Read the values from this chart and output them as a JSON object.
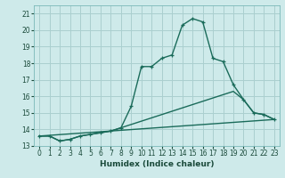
{
  "xlabel": "Humidex (Indice chaleur)",
  "background_color": "#ceeaea",
  "grid_color": "#aacfcf",
  "line_color": "#1a6b5a",
  "xlim": [
    -0.5,
    23.5
  ],
  "ylim": [
    13,
    21.5
  ],
  "yticks": [
    13,
    14,
    15,
    16,
    17,
    18,
    19,
    20,
    21
  ],
  "xticks": [
    0,
    1,
    2,
    3,
    4,
    5,
    6,
    7,
    8,
    9,
    10,
    11,
    12,
    13,
    14,
    15,
    16,
    17,
    18,
    19,
    20,
    21,
    22,
    23
  ],
  "series": [
    {
      "x": [
        0,
        23
      ],
      "y": [
        13.6,
        14.6
      ],
      "marker": false,
      "linewidth": 1.0
    },
    {
      "x": [
        0,
        1,
        2,
        3,
        4,
        5,
        6,
        7,
        8,
        9,
        10,
        11,
        12,
        13,
        14,
        15,
        16,
        17,
        18,
        19,
        20,
        21,
        22,
        23
      ],
      "y": [
        13.6,
        13.6,
        13.3,
        13.4,
        13.6,
        13.7,
        13.8,
        13.9,
        14.1,
        14.3,
        14.5,
        14.7,
        14.9,
        15.1,
        15.3,
        15.5,
        15.7,
        15.9,
        16.1,
        16.3,
        15.8,
        15.0,
        14.9,
        14.6
      ],
      "marker": false,
      "linewidth": 1.0
    },
    {
      "x": [
        0,
        1,
        2,
        3,
        4,
        5,
        6,
        7,
        8,
        9,
        10,
        11,
        12,
        13,
        14,
        15,
        16,
        17,
        18,
        19,
        20,
        21,
        22,
        23
      ],
      "y": [
        13.6,
        13.6,
        13.3,
        13.4,
        13.6,
        13.7,
        13.8,
        13.9,
        14.1,
        15.4,
        17.8,
        17.8,
        18.3,
        18.5,
        20.3,
        20.7,
        20.5,
        18.3,
        18.1,
        16.7,
        15.8,
        15.0,
        14.9,
        14.6
      ],
      "marker": true,
      "linewidth": 1.0
    }
  ]
}
